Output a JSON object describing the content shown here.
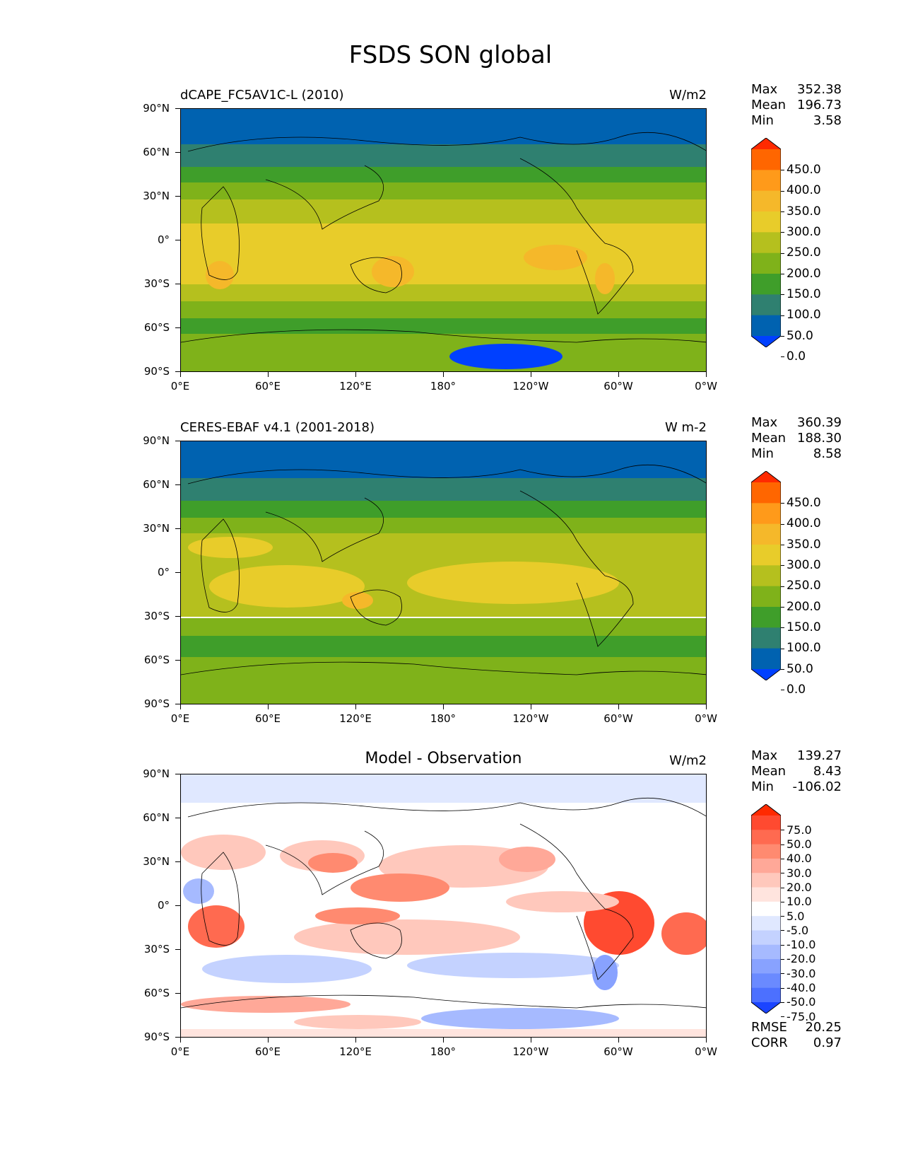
{
  "title": "FSDS SON global",
  "panels": [
    {
      "name": "model",
      "title_left": "dCAPE_FC5AV1C-L (2010)",
      "title_right": "W/m2",
      "stats": {
        "max_label": "Max",
        "max": "352.38",
        "mean_label": "Mean",
        "mean": "196.73",
        "min_label": "Min",
        "min": "3.58"
      },
      "colorbar_levels": [
        "450.0",
        "400.0",
        "350.0",
        "300.0",
        "250.0",
        "200.0",
        "150.0",
        "100.0",
        "50.0",
        "0.0"
      ],
      "colorbar_colors": [
        "#ff2a00",
        "#ff6600",
        "#ff9a1a",
        "#f5b82a",
        "#e8cc2a",
        "#b5c01e",
        "#7fb21a",
        "#3f9e2a",
        "#2f8070",
        "#0062b0",
        "#0040ff"
      ]
    },
    {
      "name": "observation",
      "title_left": "CERES-EBAF v4.1 (2001-2018)",
      "title_right": "W m-2",
      "stats": {
        "max_label": "Max",
        "max": "360.39",
        "mean_label": "Mean",
        "mean": "188.30",
        "min_label": "Min",
        "min": "8.58"
      },
      "colorbar_levels": [
        "450.0",
        "400.0",
        "350.0",
        "300.0",
        "250.0",
        "200.0",
        "150.0",
        "100.0",
        "50.0",
        "0.0"
      ],
      "colorbar_colors": [
        "#ff2a00",
        "#ff6600",
        "#ff9a1a",
        "#f5b82a",
        "#e8cc2a",
        "#b5c01e",
        "#7fb21a",
        "#3f9e2a",
        "#2f8070",
        "#0062b0",
        "#0040ff"
      ]
    },
    {
      "name": "difference",
      "title_center": "Model - Observation",
      "title_right": "W/m2",
      "stats": {
        "max_label": "Max",
        "max": "139.27",
        "mean_label": "Mean",
        "mean": "8.43",
        "min_label": "Min",
        "min": "-106.02"
      },
      "colorbar_levels": [
        "75.0",
        "50.0",
        "40.0",
        "30.0",
        "20.0",
        "10.0",
        "5.0",
        "-5.0",
        "-10.0",
        "-20.0",
        "-30.0",
        "-40.0",
        "-50.0",
        "-75.0"
      ],
      "colorbar_colors": [
        "#ff2a00",
        "#ff4a30",
        "#ff6a50",
        "#ff8a70",
        "#ffa898",
        "#ffc8bc",
        "#ffe4de",
        "#ffffff",
        "#e0e8ff",
        "#c4d2ff",
        "#a6baff",
        "#88a2ff",
        "#6a8aff",
        "#4c70ff",
        "#1a44ff"
      ],
      "rmse_label": "RMSE",
      "rmse": "20.25",
      "corr_label": "CORR",
      "corr": "0.97"
    }
  ],
  "axes": {
    "y_ticks": [
      "90°N",
      "60°N",
      "30°N",
      "0°",
      "30°S",
      "60°S",
      "90°S"
    ],
    "x_ticks": [
      "0°E",
      "60°E",
      "120°E",
      "180°",
      "120°W",
      "60°W",
      "0°W"
    ]
  },
  "chart_data": {
    "type": "heatmap",
    "title": "FSDS SON global",
    "maps": [
      {
        "title": "dCAPE_FC5AV1C-L (2010)",
        "units": "W/m2",
        "max": 352.38,
        "mean": 196.73,
        "min": 3.58,
        "levels": [
          0,
          50,
          100,
          150,
          200,
          250,
          300,
          350,
          400,
          450
        ]
      },
      {
        "title": "CERES-EBAF v4.1 (2001-2018)",
        "units": "W m-2",
        "max": 360.39,
        "mean": 188.3,
        "min": 8.58,
        "levels": [
          0,
          50,
          100,
          150,
          200,
          250,
          300,
          350,
          400,
          450
        ]
      },
      {
        "title": "Model - Observation",
        "units": "W/m2",
        "max": 139.27,
        "mean": 8.43,
        "min": -106.02,
        "levels": [
          -75,
          -50,
          -40,
          -30,
          -20,
          -10,
          -5,
          5,
          10,
          20,
          30,
          40,
          50,
          75
        ],
        "rmse": 20.25,
        "corr": 0.97
      }
    ],
    "xlabel": "",
    "ylabel": "",
    "xlim": [
      0,
      360
    ],
    "ylim": [
      -90,
      90
    ]
  }
}
